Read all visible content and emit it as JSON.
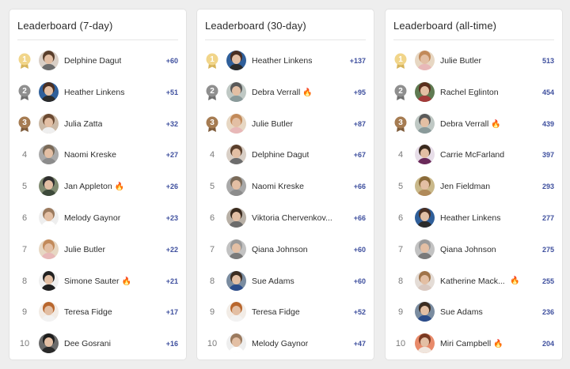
{
  "colors": {
    "accent": "#3e4f9e",
    "gold": "#f1d58a",
    "silver": "#8f8f8f",
    "bronze": "#a67c52"
  },
  "icons": {
    "medal": "medal-icon",
    "fire": "fire-icon",
    "fire_glyph": "🔥"
  },
  "boards": [
    {
      "title": "Leaderboard (7-day)",
      "rows": [
        {
          "rank": "1",
          "name": "Delphine Dagut",
          "score": "+60",
          "fire": false,
          "avatar": {
            "bg": "#d9cfc6",
            "hair": "#5a3f2c",
            "shirt": "#6d6d6d"
          }
        },
        {
          "rank": "2",
          "name": "Heather Linkens",
          "score": "+51",
          "fire": false,
          "avatar": {
            "bg": "#2f5f9a",
            "hair": "#4a2f22",
            "shirt": "#2b2b2b"
          }
        },
        {
          "rank": "3",
          "name": "Julia Zatta",
          "score": "+32",
          "fire": false,
          "avatar": {
            "bg": "#cbb9a6",
            "hair": "#6b4a32",
            "shirt": "#efefef"
          }
        },
        {
          "rank": "4",
          "name": "Naomi Kreske",
          "score": "+27",
          "fire": false,
          "avatar": {
            "bg": "#a9a9a9",
            "hair": "#7a6a58",
            "shirt": "#8c8c8c"
          }
        },
        {
          "rank": "5",
          "name": "Jan Appleton",
          "score": "+26",
          "fire": true,
          "avatar": {
            "bg": "#7f8a70",
            "hair": "#2f2f2f",
            "shirt": "#3d4a3a"
          }
        },
        {
          "rank": "6",
          "name": "Melody Gaynor",
          "score": "+23",
          "fire": false,
          "avatar": {
            "bg": "#eeeeee",
            "hair": "#9b7a5e",
            "shirt": "#ffffff"
          }
        },
        {
          "rank": "7",
          "name": "Julie Butler",
          "score": "+22",
          "fire": false,
          "avatar": {
            "bg": "#e7d7c3",
            "hair": "#c28a5a",
            "shirt": "#e8b8b8"
          }
        },
        {
          "rank": "8",
          "name": "Simone Sauter",
          "score": "+21",
          "fire": true,
          "avatar": {
            "bg": "#f0f0f0",
            "hair": "#222222",
            "shirt": "#1f1f1f"
          }
        },
        {
          "rank": "9",
          "name": "Teresa Fidge",
          "score": "+17",
          "fire": false,
          "avatar": {
            "bg": "#f2ece6",
            "hair": "#b9672e",
            "shirt": "#f2f2f2"
          }
        },
        {
          "rank": "10",
          "name": "Dee Gosrani",
          "score": "+16",
          "fire": false,
          "avatar": {
            "bg": "#6a6a6a",
            "hair": "#1d1d1d",
            "shirt": "#2a2a2a"
          }
        }
      ]
    },
    {
      "title": "Leaderboard (30-day)",
      "rows": [
        {
          "rank": "1",
          "name": "Heather Linkens",
          "score": "+137",
          "fire": false,
          "avatar": {
            "bg": "#2f5f9a",
            "hair": "#4a2f22",
            "shirt": "#2b2b2b"
          }
        },
        {
          "rank": "2",
          "name": "Debra Verrall",
          "score": "+95",
          "fire": true,
          "avatar": {
            "bg": "#bfc8c4",
            "hair": "#5a5a5a",
            "shirt": "#8a9a9a"
          }
        },
        {
          "rank": "3",
          "name": "Julie Butler",
          "score": "+87",
          "fire": false,
          "avatar": {
            "bg": "#e7d7c3",
            "hair": "#c28a5a",
            "shirt": "#e8b8b8"
          }
        },
        {
          "rank": "4",
          "name": "Delphine Dagut",
          "score": "+67",
          "fire": false,
          "avatar": {
            "bg": "#d9cfc6",
            "hair": "#5a3f2c",
            "shirt": "#6d6d6d"
          }
        },
        {
          "rank": "5",
          "name": "Naomi Kreske",
          "score": "+66",
          "fire": false,
          "avatar": {
            "bg": "#a9a9a9",
            "hair": "#7a6a58",
            "shirt": "#8c8c8c"
          }
        },
        {
          "rank": "6",
          "name": "Viktoria Chervenkov...",
          "score": "+66",
          "fire": false,
          "avatar": {
            "bg": "#b8b0a6",
            "hair": "#3a2a1e",
            "shirt": "#6b6b6b"
          }
        },
        {
          "rank": "7",
          "name": "Qiana Johnson",
          "score": "+60",
          "fire": false,
          "avatar": {
            "bg": "#c2c2c2",
            "hair": "#9a9a9a",
            "shirt": "#7a7a7a"
          }
        },
        {
          "rank": "8",
          "name": "Sue Adams",
          "score": "+60",
          "fire": false,
          "avatar": {
            "bg": "#7a8ca0",
            "hair": "#3c2d22",
            "shirt": "#2b4c8a"
          }
        },
        {
          "rank": "9",
          "name": "Teresa Fidge",
          "score": "+52",
          "fire": false,
          "avatar": {
            "bg": "#f2ece6",
            "hair": "#b9672e",
            "shirt": "#f2f2f2"
          }
        },
        {
          "rank": "10",
          "name": "Melody Gaynor",
          "score": "+47",
          "fire": false,
          "avatar": {
            "bg": "#eeeeee",
            "hair": "#9b7a5e",
            "shirt": "#ffffff"
          }
        }
      ]
    },
    {
      "title": "Leaderboard (all-time)",
      "rows": [
        {
          "rank": "1",
          "name": "Julie Butler",
          "score": "513",
          "fire": false,
          "avatar": {
            "bg": "#e7d7c3",
            "hair": "#c28a5a",
            "shirt": "#e8b8b8"
          }
        },
        {
          "rank": "2",
          "name": "Rachel Eglinton",
          "score": "454",
          "fire": false,
          "avatar": {
            "bg": "#5f7a52",
            "hair": "#5a2f1e",
            "shirt": "#a33a3a"
          }
        },
        {
          "rank": "3",
          "name": "Debra Verrall",
          "score": "439",
          "fire": true,
          "avatar": {
            "bg": "#bfc8c4",
            "hair": "#5a5a5a",
            "shirt": "#8a9a9a"
          }
        },
        {
          "rank": "4",
          "name": "Carrie McFarland",
          "score": "397",
          "fire": false,
          "avatar": {
            "bg": "#e7dde8",
            "hair": "#3a2a1e",
            "shirt": "#6a2a5a"
          }
        },
        {
          "rank": "5",
          "name": "Jen Fieldman",
          "score": "293",
          "fire": false,
          "avatar": {
            "bg": "#c9b88a",
            "hair": "#8a6a3a",
            "shirt": "#b08a5a"
          }
        },
        {
          "rank": "6",
          "name": "Heather Linkens",
          "score": "277",
          "fire": false,
          "avatar": {
            "bg": "#2f5f9a",
            "hair": "#4a2f22",
            "shirt": "#2b2b2b"
          }
        },
        {
          "rank": "7",
          "name": "Qiana Johnson",
          "score": "275",
          "fire": false,
          "avatar": {
            "bg": "#c2c2c2",
            "hair": "#9a9a9a",
            "shirt": "#7a7a7a"
          }
        },
        {
          "rank": "8",
          "name": "Katherine Mack...",
          "score": "255",
          "fire": true,
          "fire_far": true,
          "avatar": {
            "bg": "#e4dcd6",
            "hair": "#a0744a",
            "shirt": "#d9c8c0"
          }
        },
        {
          "rank": "9",
          "name": "Sue Adams",
          "score": "236",
          "fire": false,
          "avatar": {
            "bg": "#7a8ca0",
            "hair": "#3c2d22",
            "shirt": "#2b4c8a"
          }
        },
        {
          "rank": "10",
          "name": "Miri Campbell",
          "score": "204",
          "fire": true,
          "avatar": {
            "bg": "#e88a6a",
            "hair": "#7a3a22",
            "shirt": "#f0e6de"
          }
        }
      ]
    }
  ]
}
